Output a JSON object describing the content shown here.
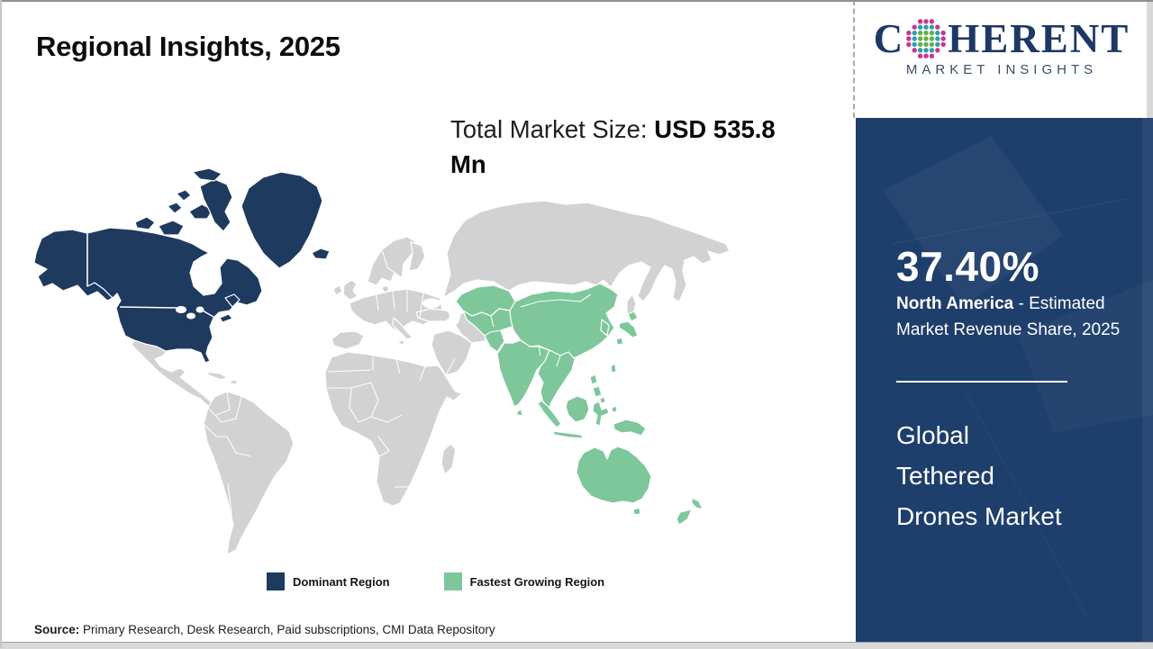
{
  "page": {
    "title": "Regional Insights, 2025"
  },
  "logo": {
    "prefix": "C",
    "suffix": "HERENT",
    "subtitle": "MARKET INSIGHTS",
    "globe_colors": {
      "inner": "#62b146",
      "mid": "#2f9fae",
      "outer": "#c4398f"
    }
  },
  "subtitle": {
    "label": "Total Market Size: ",
    "value": "USD 535.8 Mn"
  },
  "map": {
    "colors": {
      "dominant": "#1e3a5f",
      "fastest_growing": "#7dc79b",
      "other": "#d2d2d2"
    }
  },
  "legend": {
    "items": [
      {
        "label": "Dominant Region",
        "color": "#1e3a5f"
      },
      {
        "label": "Fastest Growing Region",
        "color": "#7dc79b"
      }
    ]
  },
  "sidebar": {
    "share_value": "37.40%",
    "region": "North America",
    "region_desc": " - Estimated Market Revenue Share, 2025",
    "market_lines": [
      "Global",
      "Tethered",
      "Drones Market"
    ],
    "background": "#1e3e6c"
  },
  "source": {
    "label": "Source:",
    "text": " Primary Research, Desk Research, Paid subscriptions, CMI Data Repository"
  }
}
